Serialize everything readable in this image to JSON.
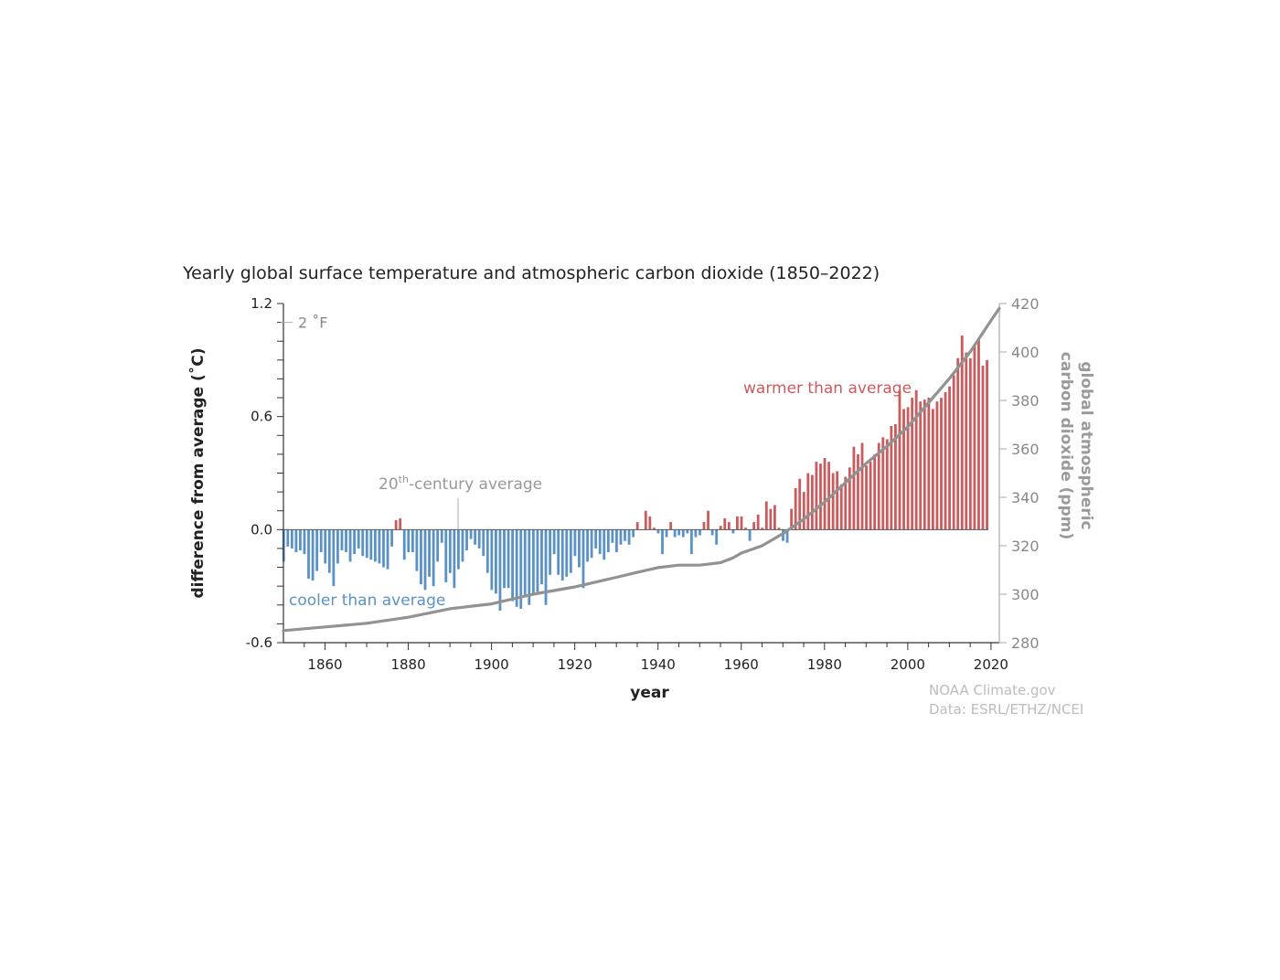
{
  "chart_data": {
    "type": "bar",
    "title": "Yearly global surface temperature and atmospheric carbon dioxide (1850–2022)",
    "xlabel": "year",
    "ylabel": "difference from average (˚C)",
    "ylabel_right": "global atmospheric carbon dioxide (ppm)",
    "ylabel_right_lines": [
      "global atmospheric",
      "carbon dioxide (ppm)"
    ],
    "xlim": [
      1850,
      2022
    ],
    "ylim": [
      -0.6,
      1.2
    ],
    "ylim_right": [
      280,
      420
    ],
    "x_ticks": [
      1860,
      1880,
      1900,
      1920,
      1940,
      1960,
      1980,
      2000,
      2020
    ],
    "y_ticks_labeled": [
      "1.2",
      "0.6",
      "0.0",
      "-0.6"
    ],
    "y_ticks_right": [
      "420",
      "400",
      "380",
      "360",
      "340",
      "320",
      "300",
      "280"
    ],
    "fahrenheit_marker": "2 ˚F",
    "annotations": {
      "warmer": "warmer than average",
      "cooler": "cooler than average",
      "average_prefix": "20",
      "average_sup": "th",
      "average_suffix": "-century average"
    },
    "colors": {
      "warm": "#c95c5e",
      "cool": "#5a92c6",
      "co2": "#929292"
    },
    "series": [
      {
        "name": "temperature anomaly",
        "start_year": 1850,
        "values": [
          -0.17,
          -0.09,
          -0.1,
          -0.12,
          -0.11,
          -0.13,
          -0.26,
          -0.27,
          -0.22,
          -0.12,
          -0.18,
          -0.23,
          -0.3,
          -0.18,
          -0.11,
          -0.12,
          -0.17,
          -0.13,
          -0.1,
          -0.14,
          -0.15,
          -0.16,
          -0.17,
          -0.18,
          -0.2,
          -0.21,
          -0.09,
          0.05,
          0.06,
          -0.16,
          -0.12,
          -0.12,
          -0.22,
          -0.29,
          -0.32,
          -0.25,
          -0.3,
          -0.17,
          -0.07,
          -0.28,
          -0.23,
          -0.31,
          -0.21,
          -0.17,
          -0.11,
          -0.05,
          -0.08,
          -0.1,
          -0.14,
          -0.23,
          -0.32,
          -0.34,
          -0.43,
          -0.31,
          -0.31,
          -0.38,
          -0.41,
          -0.42,
          -0.36,
          -0.4,
          -0.34,
          -0.33,
          -0.29,
          -0.4,
          -0.24,
          -0.13,
          -0.24,
          -0.27,
          -0.25,
          -0.23,
          -0.14,
          -0.2,
          -0.31,
          -0.17,
          -0.15,
          -0.1,
          -0.13,
          -0.16,
          -0.12,
          -0.07,
          -0.12,
          -0.08,
          -0.06,
          -0.08,
          -0.04,
          0.04,
          0.0,
          0.1,
          0.07,
          0.01,
          -0.02,
          -0.13,
          -0.04,
          0.04,
          -0.04,
          -0.03,
          -0.04,
          -0.02,
          -0.13,
          -0.04,
          -0.03,
          0.04,
          0.1,
          -0.03,
          -0.08,
          0.02,
          0.06,
          0.04,
          -0.02,
          0.07,
          0.07,
          0.01,
          -0.06,
          0.04,
          0.08,
          0.01,
          0.15,
          0.11,
          0.13,
          0.01,
          -0.06,
          -0.07,
          0.11,
          0.22,
          0.27,
          0.2,
          0.3,
          0.29,
          0.36,
          0.35,
          0.38,
          0.36,
          0.3,
          0.31,
          0.24,
          0.28,
          0.33,
          0.44,
          0.4,
          0.46,
          0.34,
          0.36,
          0.4,
          0.46,
          0.49,
          0.48,
          0.55,
          0.56,
          0.74,
          0.64,
          0.65,
          0.7,
          0.74,
          0.68,
          0.69,
          0.7,
          0.64,
          0.68,
          0.7,
          0.73,
          0.76,
          0.82,
          0.91,
          1.03,
          0.94,
          0.91,
          0.98,
          1.01,
          0.87,
          0.9
        ]
      },
      {
        "name": "carbon dioxide",
        "points": [
          [
            1850,
            285
          ],
          [
            1860,
            286.5
          ],
          [
            1870,
            288
          ],
          [
            1880,
            290.5
          ],
          [
            1890,
            294
          ],
          [
            1900,
            296
          ],
          [
            1910,
            300
          ],
          [
            1920,
            303
          ],
          [
            1930,
            307
          ],
          [
            1935,
            309
          ],
          [
            1940,
            311
          ],
          [
            1945,
            312
          ],
          [
            1950,
            312
          ],
          [
            1955,
            313
          ],
          [
            1958,
            315
          ],
          [
            1960,
            317
          ],
          [
            1965,
            320
          ],
          [
            1970,
            325
          ],
          [
            1975,
            331
          ],
          [
            1980,
            338
          ],
          [
            1985,
            346
          ],
          [
            1990,
            354
          ],
          [
            1995,
            361
          ],
          [
            2000,
            369
          ],
          [
            2005,
            379
          ],
          [
            2010,
            389
          ],
          [
            2015,
            400
          ],
          [
            2020,
            413
          ],
          [
            2022,
            418
          ]
        ]
      }
    ],
    "source": [
      "NOAA Climate.gov",
      "Data: ESRL/ETHZ/NCEI"
    ]
  }
}
